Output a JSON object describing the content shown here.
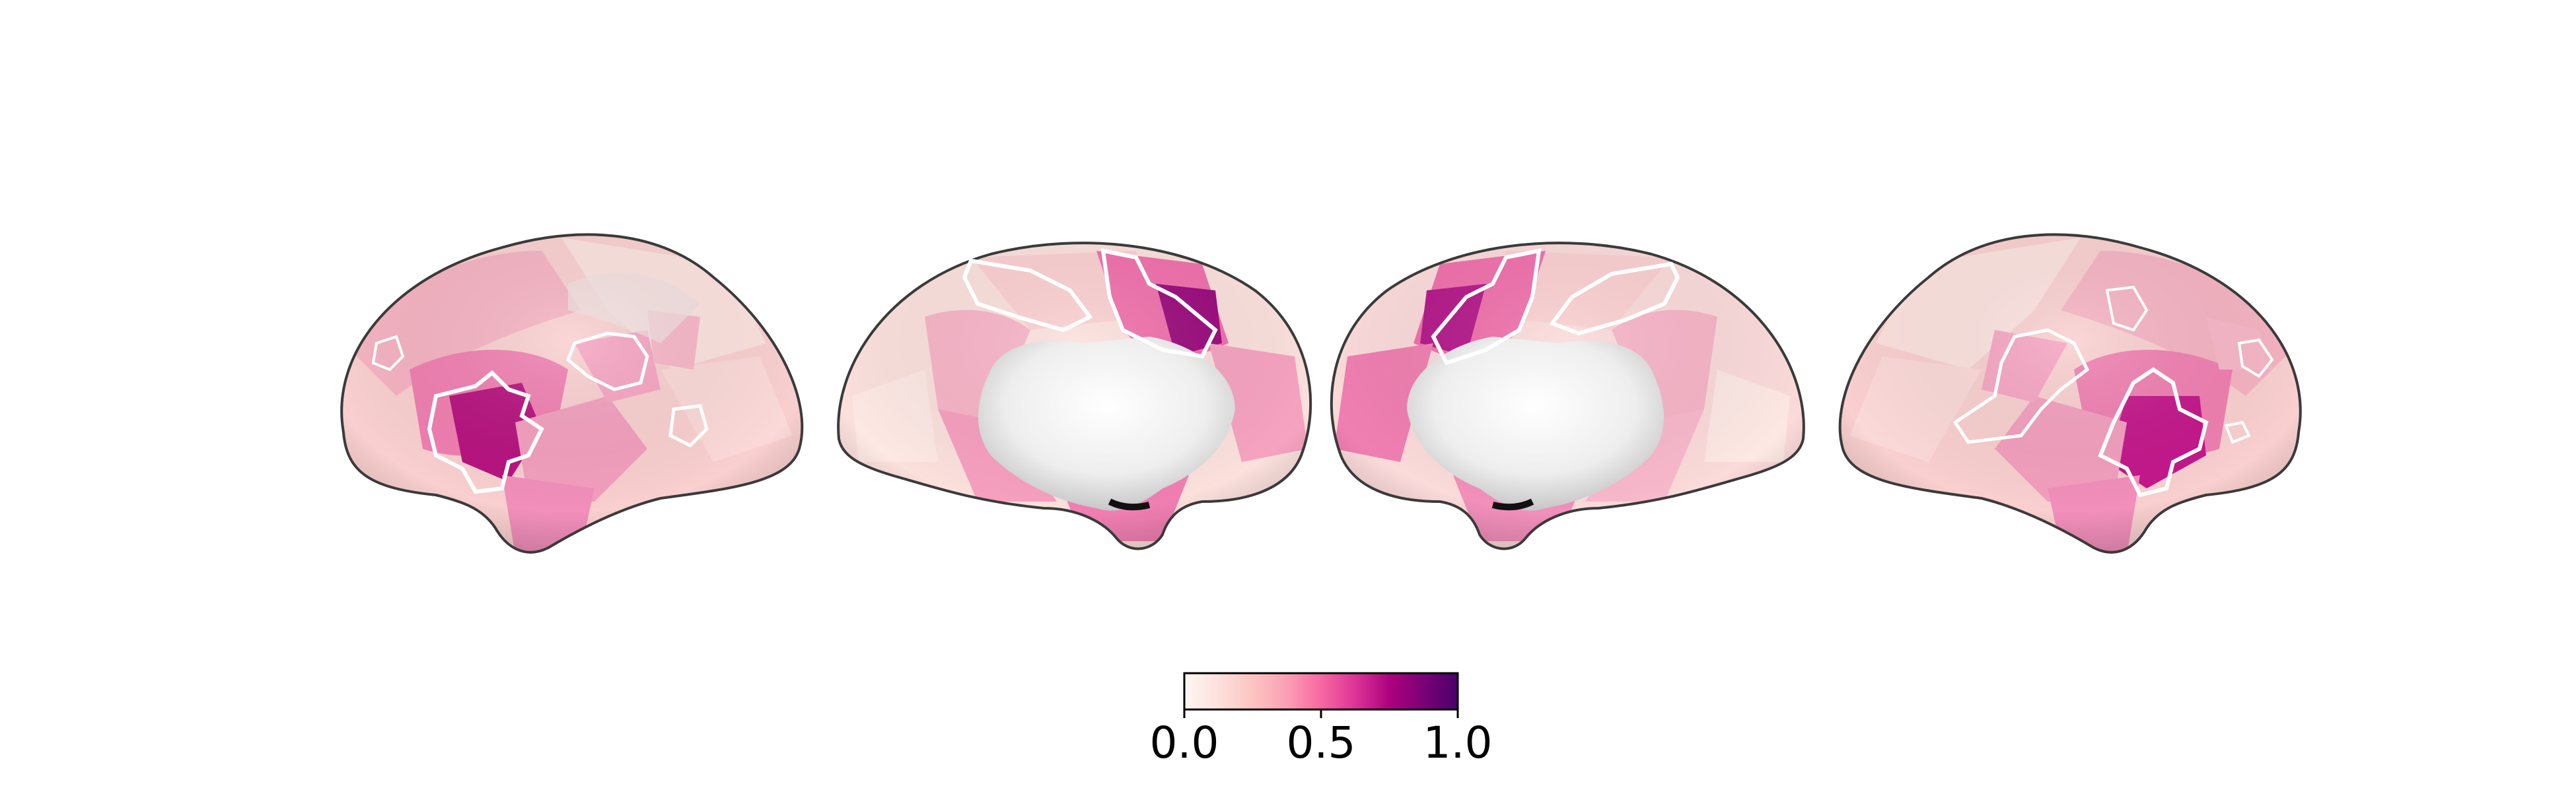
{
  "colormap": {
    "name": "RdPu",
    "stops": [
      "#fff7f3",
      "#fde0dd",
      "#fcc5c0",
      "#fa9fb5",
      "#f768a1",
      "#dd3497",
      "#ae017e",
      "#7a0177",
      "#49006a"
    ],
    "range": [
      0.0,
      1.0
    ],
    "tick_labels": [
      "0.0",
      "0.5",
      "1.0"
    ]
  },
  "views": [
    {
      "hemisphere": "left",
      "view": "lateral"
    },
    {
      "hemisphere": "left",
      "view": "medial"
    },
    {
      "hemisphere": "right",
      "view": "medial"
    },
    {
      "hemisphere": "right",
      "view": "lateral"
    }
  ],
  "colors": {
    "background": "#ffffff",
    "outline": "#ffffff",
    "medial_wall": "#f2f2f2",
    "surface_edge": "#3a3a3a"
  }
}
